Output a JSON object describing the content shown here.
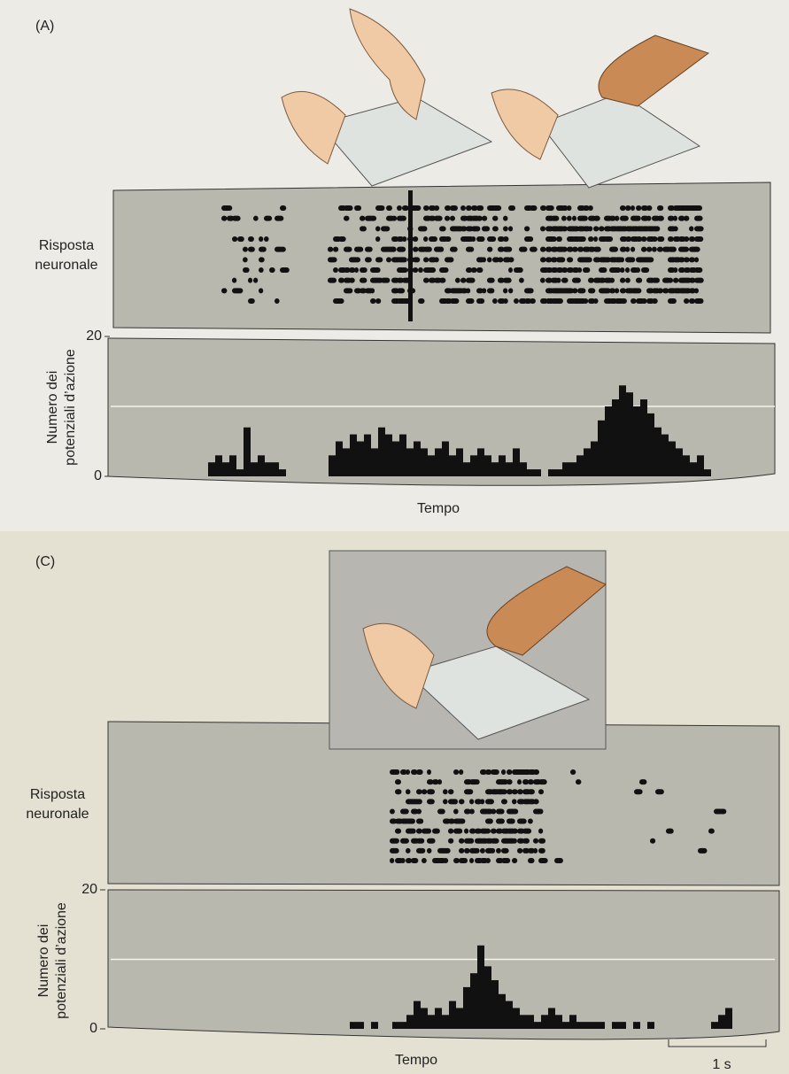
{
  "panels": [
    {
      "label": "(A)",
      "raster_label": [
        "Risposta",
        "neuronale"
      ],
      "y_label": [
        "Numero dei",
        "potenziali d’azione"
      ],
      "x_label": "Tempo",
      "ylim": [
        0,
        20
      ],
      "yticks": [
        0,
        20
      ],
      "gridlines": [
        10
      ],
      "values": [
        2,
        3,
        2,
        3,
        1,
        7,
        2,
        3,
        2,
        2,
        1,
        0,
        0,
        0,
        0,
        0,
        0,
        3,
        5,
        4,
        6,
        5,
        6,
        4,
        7,
        6,
        5,
        6,
        4,
        5,
        4,
        3,
        4,
        5,
        3,
        4,
        2,
        3,
        4,
        3,
        2,
        3,
        2,
        4,
        2,
        1,
        1,
        0,
        1,
        1,
        2,
        2,
        3,
        4,
        5,
        8,
        10,
        11,
        13,
        12,
        10,
        11,
        9,
        7,
        6,
        5,
        4,
        3,
        2,
        3,
        1
      ]
    },
    {
      "label": "(C)",
      "raster_label": [
        "Risposta",
        "neuronale"
      ],
      "y_label": [
        "Numero dei",
        "potenziali d’azione"
      ],
      "x_label": "Tempo",
      "scale_bar": "1 s",
      "ylim": [
        0,
        20
      ],
      "yticks": [
        0,
        20
      ],
      "gridlines": [
        10
      ],
      "values": [
        1,
        1,
        0,
        1,
        0,
        0,
        1,
        1,
        2,
        4,
        3,
        2,
        3,
        2,
        4,
        3,
        6,
        8,
        12,
        9,
        7,
        5,
        4,
        3,
        2,
        2,
        1,
        2,
        3,
        2,
        1,
        2,
        1,
        1,
        1,
        1,
        0,
        1,
        1,
        0,
        1,
        0,
        1,
        0,
        0,
        0,
        0,
        0,
        0,
        0,
        0,
        1,
        2,
        3
      ]
    }
  ]
}
